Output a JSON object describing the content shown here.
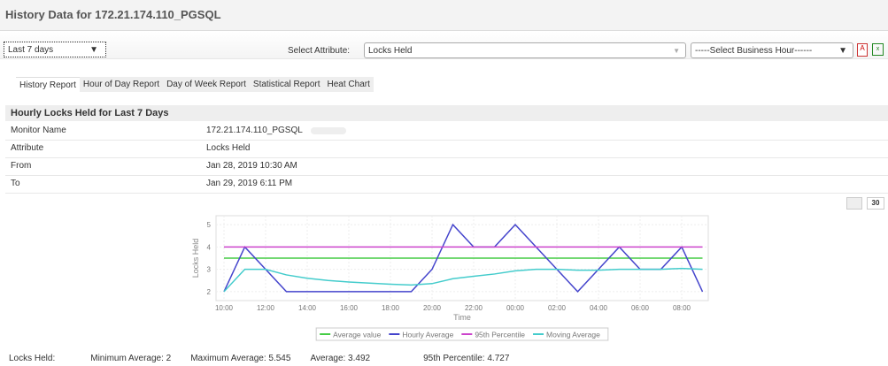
{
  "title": "History Data for 172.21.174.110_PGSQL",
  "period_select": "Last 7 days",
  "attribute_label": "Select Attribute:",
  "attribute_value": "Locks Held",
  "business_hour": "-----Select Business Hour------",
  "icons": [
    "pdf-icon",
    "excel-icon"
  ],
  "tabs": [
    "History Report",
    "Hour of Day Report",
    "Day of Week Report",
    "Statistical Report",
    "Heat Chart"
  ],
  "section_title": "Hourly Locks Held for Last 7 Days",
  "details": [
    {
      "label": "Monitor Name",
      "value": "172.21.174.110_PGSQL"
    },
    {
      "label": "Attribute",
      "value": "Locks Held"
    },
    {
      "label": "From",
      "value": "Jan 28, 2019 10:30 AM"
    },
    {
      "label": "To",
      "value": "Jan 29, 2019 6:11 PM"
    }
  ],
  "zoom_button": "30",
  "chart_data": {
    "type": "line",
    "xlabel": "Time",
    "ylabel": "Locks Held",
    "ylim": [
      1.6,
      5.4
    ],
    "yticks": [
      2,
      3,
      4,
      5
    ],
    "xticks": [
      "10:00",
      "12:00",
      "14:00",
      "16:00",
      "18:00",
      "20:00",
      "22:00",
      "00:00",
      "02:00",
      "04:00",
      "06:00",
      "08:00"
    ],
    "x": [
      "10:00",
      "11:00",
      "12:00",
      "13:00",
      "14:00",
      "15:00",
      "16:00",
      "17:00",
      "18:00",
      "19:00",
      "20:00",
      "21:00",
      "22:00",
      "23:00",
      "00:00",
      "01:00",
      "02:00",
      "03:00",
      "04:00",
      "05:00",
      "06:00",
      "07:00",
      "08:00",
      "09:00"
    ],
    "grid": true,
    "legend": "bottom",
    "series": [
      {
        "name": "Average value",
        "color": "#44cc44",
        "values": [
          3.5,
          3.5,
          3.5,
          3.5,
          3.5,
          3.5,
          3.5,
          3.5,
          3.5,
          3.5,
          3.5,
          3.5,
          3.5,
          3.5,
          3.5,
          3.5,
          3.5,
          3.5,
          3.5,
          3.5,
          3.5,
          3.5,
          3.5,
          3.5
        ]
      },
      {
        "name": "Hourly Average",
        "color": "#4444cc",
        "values": [
          2,
          4,
          3,
          2,
          2,
          2,
          2,
          2,
          2,
          2,
          3,
          5,
          4,
          4,
          5,
          4,
          3,
          2,
          3,
          4,
          3,
          3,
          4,
          2
        ]
      },
      {
        "name": "95th Percentile",
        "color": "#cc44cc",
        "values": [
          4,
          4,
          4,
          4,
          4,
          4,
          4,
          4,
          4,
          4,
          4,
          4,
          4,
          4,
          4,
          4,
          4,
          4,
          4,
          4,
          4,
          4,
          4,
          4
        ]
      },
      {
        "name": "Moving Average",
        "color": "#44cccc",
        "values": [
          2,
          3,
          3,
          2.75,
          2.6,
          2.5,
          2.43,
          2.38,
          2.33,
          2.3,
          2.36,
          2.58,
          2.69,
          2.79,
          2.93,
          3,
          3,
          2.96,
          2.96,
          3,
          3,
          3,
          3.04,
          3
        ]
      }
    ]
  },
  "summary": {
    "label": "Locks Held:",
    "min": "Minimum Average:  2",
    "max": "Maximum Average:  5.545",
    "avg": "Average:  3.492",
    "p95": "95th Percentile:  4.727"
  }
}
